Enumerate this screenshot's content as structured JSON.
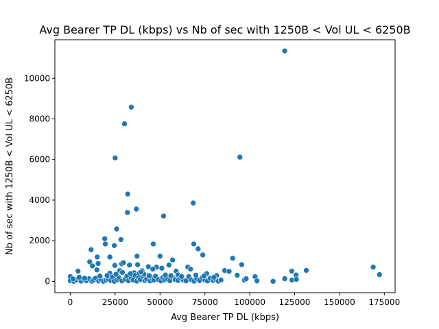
{
  "chart_data": {
    "type": "scatter",
    "title": "Avg Bearer TP DL (kbps) vs Nb of sec with 1250B < Vol UL < 6250B",
    "xlabel": "Avg Bearer TP DL (kbps)",
    "ylabel": "Nb of sec with 1250B < Vol UL < 6250B",
    "xlim": [
      -8600,
      181000
    ],
    "ylim": [
      -560,
      11900
    ],
    "xticks": [
      0,
      25000,
      50000,
      75000,
      100000,
      125000,
      150000,
      175000
    ],
    "xtick_labels": [
      "0",
      "25000",
      "50000",
      "75000",
      "100000",
      "125000",
      "150000",
      "175000"
    ],
    "yticks": [
      0,
      2000,
      4000,
      6000,
      8000,
      10000
    ],
    "ytick_labels": [
      "0",
      "2000",
      "4000",
      "6000",
      "8000",
      "10000"
    ],
    "grid": false,
    "marker_color": "#1f77b4",
    "points": [
      [
        119500,
        11350
      ],
      [
        34000,
        8580
      ],
      [
        30200,
        7760
      ],
      [
        25000,
        6080
      ],
      [
        94500,
        6120
      ],
      [
        32000,
        4300
      ],
      [
        68500,
        3860
      ],
      [
        36800,
        3560
      ],
      [
        31800,
        3390
      ],
      [
        52000,
        3220
      ],
      [
        25800,
        2580
      ],
      [
        28200,
        2060
      ],
      [
        19200,
        2100
      ],
      [
        19500,
        1840
      ],
      [
        46200,
        1840
      ],
      [
        24500,
        1760
      ],
      [
        68800,
        1840
      ],
      [
        71200,
        1600
      ],
      [
        11600,
        1560
      ],
      [
        73800,
        1300
      ],
      [
        15000,
        1200
      ],
      [
        22000,
        1200
      ],
      [
        37200,
        1240
      ],
      [
        50000,
        1240
      ],
      [
        57000,
        1050
      ],
      [
        90500,
        1140
      ],
      [
        10800,
        960
      ],
      [
        12300,
        760
      ],
      [
        15500,
        880
      ],
      [
        24800,
        780
      ],
      [
        28600,
        860
      ],
      [
        29600,
        920
      ],
      [
        33000,
        800
      ],
      [
        37500,
        820
      ],
      [
        48000,
        700
      ],
      [
        55000,
        800
      ],
      [
        65500,
        700
      ],
      [
        95500,
        820
      ],
      [
        168800,
        700
      ],
      [
        4300,
        500
      ],
      [
        14800,
        560
      ],
      [
        22000,
        400
      ],
      [
        27500,
        520
      ],
      [
        35500,
        420
      ],
      [
        40000,
        520
      ],
      [
        43500,
        720
      ],
      [
        46000,
        600
      ],
      [
        51000,
        650
      ],
      [
        59000,
        500
      ],
      [
        60000,
        320
      ],
      [
        67000,
        600
      ],
      [
        76000,
        380
      ],
      [
        81500,
        280
      ],
      [
        86000,
        530
      ],
      [
        88500,
        490
      ],
      [
        93000,
        300
      ],
      [
        123400,
        500
      ],
      [
        125800,
        310
      ],
      [
        131500,
        540
      ],
      [
        172300,
        330
      ],
      [
        0,
        230
      ],
      [
        0,
        30
      ],
      [
        2000,
        0
      ],
      [
        3500,
        60
      ],
      [
        4500,
        160
      ],
      [
        6000,
        10
      ],
      [
        7500,
        80
      ],
      [
        9000,
        30
      ],
      [
        10500,
        130
      ],
      [
        12000,
        5
      ],
      [
        13000,
        60
      ],
      [
        14000,
        150
      ],
      [
        15800,
        20
      ],
      [
        17000,
        90
      ],
      [
        18500,
        0
      ],
      [
        19800,
        50
      ],
      [
        21000,
        120
      ],
      [
        22500,
        40
      ],
      [
        23500,
        210
      ],
      [
        24500,
        0
      ],
      [
        26000,
        70
      ],
      [
        27000,
        180
      ],
      [
        28800,
        20
      ],
      [
        30500,
        100
      ],
      [
        31500,
        250
      ],
      [
        32500,
        30
      ],
      [
        34000,
        140
      ],
      [
        35000,
        60
      ],
      [
        36000,
        300
      ],
      [
        37000,
        10
      ],
      [
        38000,
        180
      ],
      [
        39000,
        80
      ],
      [
        40500,
        230
      ],
      [
        41500,
        40
      ],
      [
        42500,
        120
      ],
      [
        43500,
        300
      ],
      [
        44500,
        20
      ],
      [
        45500,
        150
      ],
      [
        46500,
        60
      ],
      [
        47500,
        250
      ],
      [
        49000,
        90
      ],
      [
        50500,
        20
      ],
      [
        51500,
        180
      ],
      [
        52500,
        60
      ],
      [
        54000,
        120
      ],
      [
        55500,
        30
      ],
      [
        57000,
        200
      ],
      [
        58500,
        80
      ],
      [
        60000,
        40
      ],
      [
        61500,
        150
      ],
      [
        63000,
        60
      ],
      [
        64500,
        20
      ],
      [
        66000,
        230
      ],
      [
        67500,
        70
      ],
      [
        69000,
        10
      ],
      [
        70500,
        120
      ],
      [
        72000,
        40
      ],
      [
        73500,
        180
      ],
      [
        75000,
        60
      ],
      [
        76500,
        20
      ],
      [
        78000,
        150
      ],
      [
        79500,
        40
      ],
      [
        81000,
        90
      ],
      [
        82500,
        10
      ],
      [
        84000,
        60
      ],
      [
        97000,
        60
      ],
      [
        98000,
        130
      ],
      [
        103000,
        230
      ],
      [
        104000,
        20
      ],
      [
        113000,
        0
      ],
      [
        119500,
        130
      ],
      [
        123500,
        60
      ],
      [
        126000,
        100
      ],
      [
        1500,
        120
      ],
      [
        5000,
        200
      ],
      [
        8000,
        150
      ],
      [
        16500,
        260
      ],
      [
        20500,
        280
      ],
      [
        25500,
        350
      ],
      [
        33500,
        380
      ],
      [
        38500,
        400
      ],
      [
        41000,
        350
      ],
      [
        44000,
        270
      ],
      [
        53000,
        310
      ],
      [
        56000,
        280
      ],
      [
        62000,
        240
      ],
      [
        70000,
        300
      ],
      [
        74500,
        260
      ],
      [
        80000,
        200
      ],
      [
        29000,
        440
      ],
      [
        39500,
        460
      ]
    ]
  }
}
